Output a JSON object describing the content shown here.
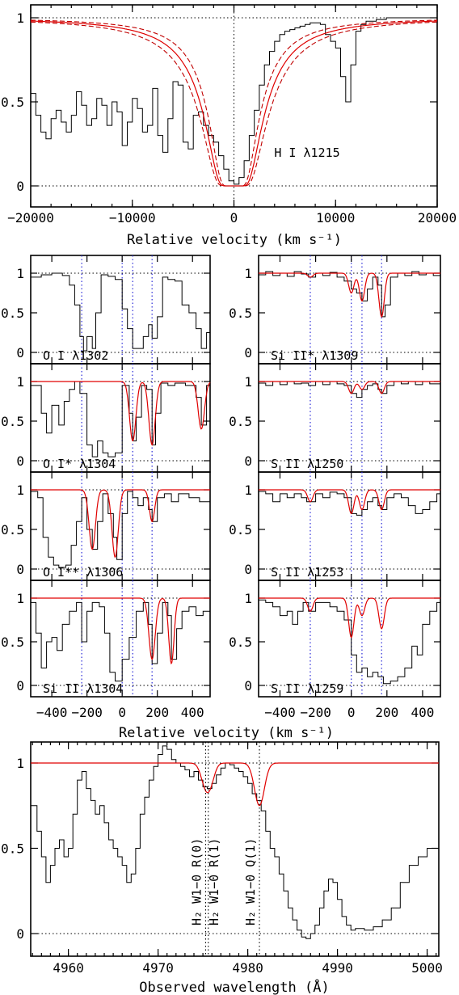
{
  "chart_data": [
    {
      "id": "top",
      "type": "line",
      "title": "H I λ1215",
      "xlabel": "Relative velocity (km s⁻¹)",
      "xlim": [
        -20000,
        20000
      ],
      "ylim": [
        -0.1,
        1.05
      ],
      "xticks": [
        "−20000",
        "−10000",
        "0",
        "10000",
        "20000"
      ],
      "xtick_values": [
        -20000,
        -10000,
        0,
        10000,
        20000
      ],
      "yticks": [
        "0",
        "0.5",
        "1"
      ],
      "ytick_values": [
        0,
        0.5,
        1
      ],
      "series": [
        {
          "x": [
            -20000,
            -19500,
            -19000,
            -18500,
            -18000,
            -17500,
            -17000,
            -16500,
            -16000,
            -15500,
            -15000,
            -14500,
            -14000,
            -13500,
            -13000,
            -12500,
            -12000,
            -11500,
            -11000,
            -10500,
            -10000,
            -9500,
            -9000,
            -8500,
            -8000,
            -7500,
            -7000,
            -6500,
            -6000,
            -5500,
            -5000,
            -4500,
            -4000,
            -3500,
            -3000,
            -2500,
            -2000,
            -1500,
            -1000,
            -500,
            0,
            500,
            1000,
            1500,
            2000,
            2500,
            3000,
            3500,
            4000,
            4500,
            5000,
            5500,
            6000,
            6500,
            7000,
            7500,
            8000,
            8500,
            9000,
            9500,
            10000,
            10500,
            11000,
            11500,
            12000,
            12500,
            13000,
            13500,
            14000,
            15000,
            16000,
            17000,
            18000,
            19000,
            20000
          ],
          "y": [
            0.55,
            0.42,
            0.32,
            0.28,
            0.4,
            0.45,
            0.38,
            0.32,
            0.42,
            0.56,
            0.48,
            0.36,
            0.4,
            0.52,
            0.48,
            0.36,
            0.5,
            0.44,
            0.24,
            0.38,
            0.52,
            0.46,
            0.32,
            0.36,
            0.58,
            0.3,
            0.2,
            0.4,
            0.62,
            0.6,
            0.26,
            0.22,
            0.42,
            0.44,
            0.36,
            0.3,
            0.26,
            0.18,
            0.1,
            0.03,
            0.01,
            0.05,
            0.15,
            0.3,
            0.45,
            0.6,
            0.72,
            0.8,
            0.86,
            0.9,
            0.92,
            0.93,
            0.94,
            0.95,
            0.96,
            0.97,
            0.97,
            0.96,
            0.9,
            0.86,
            0.82,
            0.65,
            0.5,
            0.72,
            0.92,
            0.96,
            0.98,
            0.98,
            0.99,
            1.0,
            1.0,
            1.0,
            1.0,
            1.0,
            1.0
          ]
        }
      ]
    }
  ],
  "panels": [
    {
      "label": "O I λ1302"
    },
    {
      "label": "O I* λ1304"
    },
    {
      "label": "O I** λ1306"
    },
    {
      "label": "Si II λ1304"
    },
    {
      "label": "Si II* λ1309"
    },
    {
      "label": "S II λ1250"
    },
    {
      "label": "S II λ1253"
    },
    {
      "label": "S II λ1259"
    }
  ],
  "mid_axis": {
    "xlabel": "Relative velocity (km s⁻¹)",
    "xticks": [
      "−400",
      "−200",
      "0",
      "200",
      "400"
    ],
    "xtick_values": [
      -400,
      -200,
      0,
      200,
      400
    ],
    "yticks": [
      "0",
      "0.5",
      "1"
    ]
  },
  "bottom": {
    "xlabel": "Observed wavelength (Å)",
    "xticks": [
      "4960",
      "4970",
      "4980",
      "4990",
      "5000"
    ],
    "xtick_values": [
      4960,
      4970,
      4980,
      4990,
      5000
    ],
    "yticks": [
      "0",
      "0.5",
      "1"
    ],
    "ytick_values": [
      0,
      0.5,
      1
    ],
    "lines": [
      {
        "label": "H₂ W1−0 R(0)",
        "x": 4975.3
      },
      {
        "label": "H₂ W1−0 R(1)",
        "x": 4975.6
      },
      {
        "label": "H₂ W1−0 Q(1)",
        "x": 4981.3
      }
    ]
  },
  "colors": {
    "model": "#e00000",
    "components": "#2a2ad8",
    "data": "#000000"
  }
}
